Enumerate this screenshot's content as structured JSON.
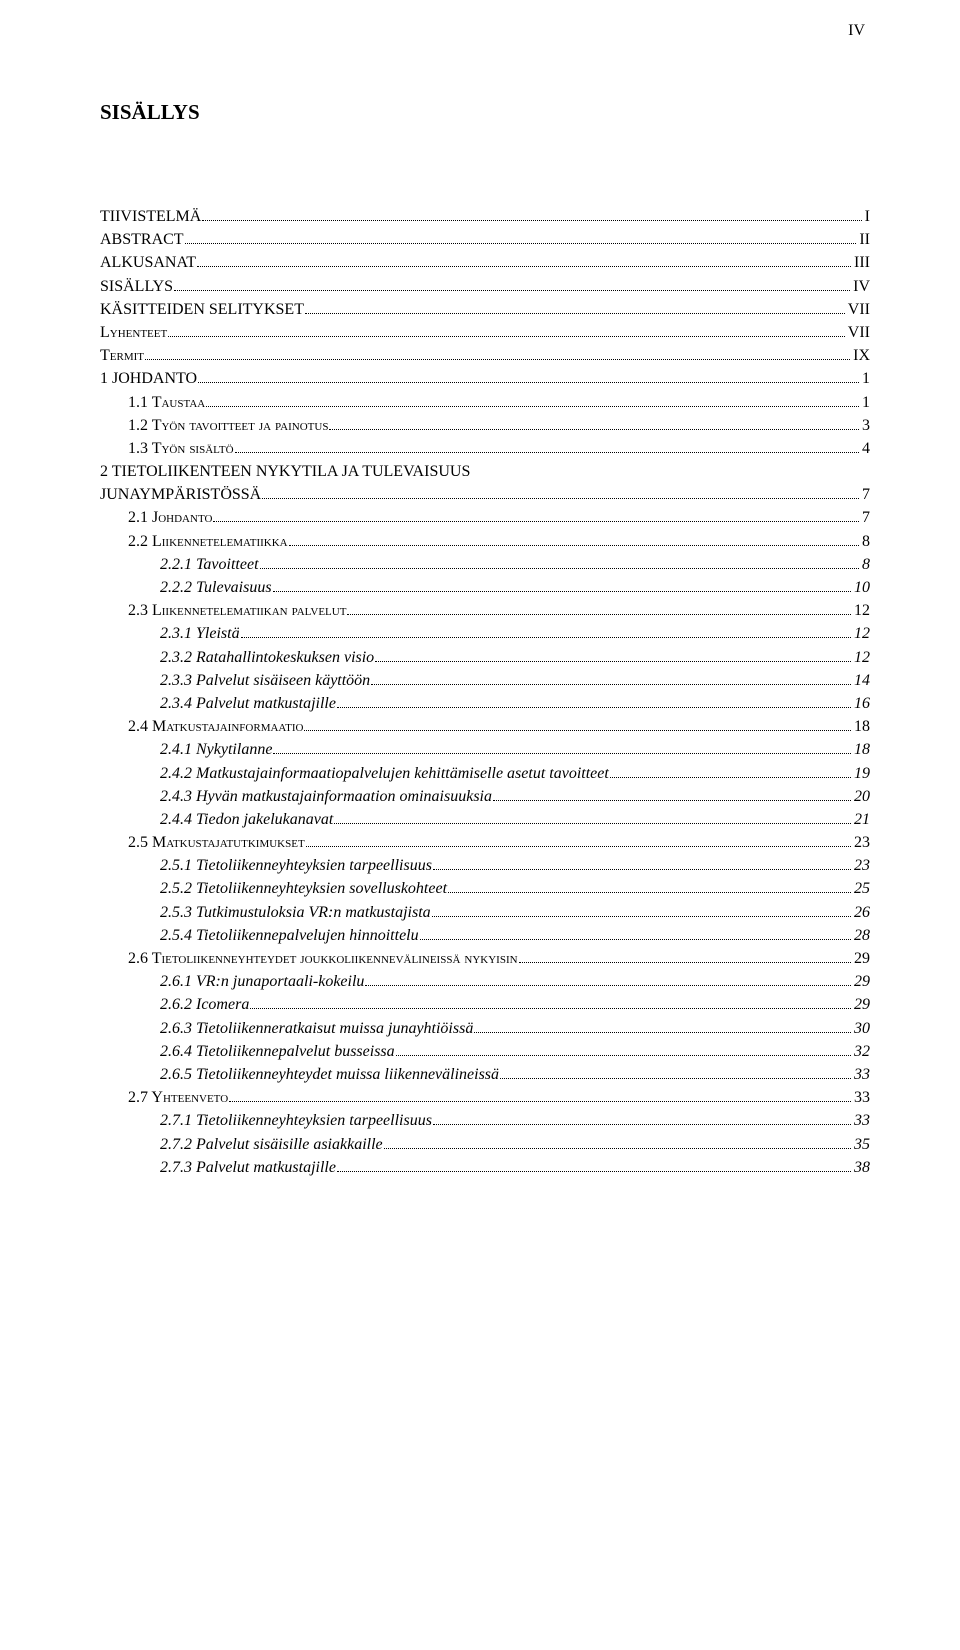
{
  "page_roman": "IV",
  "title": "SISÄLLYS",
  "toc": [
    {
      "lvl": 0,
      "label": "TIIVISTELMÄ",
      "page": "I"
    },
    {
      "lvl": 0,
      "label": "ABSTRACT",
      "page": "II"
    },
    {
      "lvl": 0,
      "label": "ALKUSANAT",
      "page": "III"
    },
    {
      "lvl": 0,
      "label": "SISÄLLYS",
      "page": "IV"
    },
    {
      "lvl": 0,
      "label": "KÄSITTEIDEN SELITYKSET",
      "page": "VII"
    },
    {
      "lvl": 0,
      "label_sc": "Lyhenteet",
      "page": "VII"
    },
    {
      "lvl": 0,
      "label_sc": "Termit",
      "page": "IX"
    },
    {
      "lvl": 0,
      "label": "1    JOHDANTO",
      "page": "1"
    },
    {
      "lvl": 1,
      "label_sc": "1.1    Taustaa",
      "page": "1"
    },
    {
      "lvl": 1,
      "label_sc": "1.2    Työn tavoitteet ja painotus",
      "page": "3"
    },
    {
      "lvl": 1,
      "label_sc": "1.3    Työn sisältö",
      "page": "4"
    },
    {
      "lvl": 0,
      "label": "2    TIETOLIIKENTEEN NYKYTILA JA TULEVAISUUS",
      "label2": "JUNAYMPÄRISTÖSSÄ",
      "page": "7"
    },
    {
      "lvl": 1,
      "label_sc": "2.1    Johdanto",
      "page": "7"
    },
    {
      "lvl": 1,
      "label_sc": "2.2    Liikennetelematiikka",
      "page": "8"
    },
    {
      "lvl": 2,
      "label": "2.2.1    Tavoitteet",
      "page": "8"
    },
    {
      "lvl": 2,
      "label": "2.2.2    Tulevaisuus",
      "page": "10"
    },
    {
      "lvl": 1,
      "label_sc": "2.3    Liikennetelematiikan palvelut",
      "page": "12"
    },
    {
      "lvl": 2,
      "label": "2.3.1    Yleistä",
      "page": "12"
    },
    {
      "lvl": 2,
      "label": "2.3.2    Ratahallintokeskuksen visio",
      "page": "12"
    },
    {
      "lvl": 2,
      "label": "2.3.3    Palvelut sisäiseen käyttöön",
      "page": "14"
    },
    {
      "lvl": 2,
      "label": "2.3.4    Palvelut matkustajille",
      "page": "16"
    },
    {
      "lvl": 1,
      "label_sc": "2.4    Matkustajainformaatio",
      "page": "18"
    },
    {
      "lvl": 2,
      "label": "2.4.1    Nykytilanne",
      "page": "18"
    },
    {
      "lvl": 2,
      "label": "2.4.2    Matkustajainformaatiopalvelujen kehittämiselle asetut tavoitteet",
      "page": "19"
    },
    {
      "lvl": 2,
      "label": "2.4.3    Hyvän matkustajainformaation ominaisuuksia",
      "page": "20"
    },
    {
      "lvl": 2,
      "label": "2.4.4    Tiedon jakelukanavat",
      "page": "21"
    },
    {
      "lvl": 1,
      "label_sc": "2.5    Matkustajatutkimukset",
      "page": "23"
    },
    {
      "lvl": 2,
      "label": "2.5.1    Tietoliikenneyhteyksien tarpeellisuus",
      "page": "23"
    },
    {
      "lvl": 2,
      "label": "2.5.2    Tietoliikenneyhteyksien sovelluskohteet",
      "page": "25"
    },
    {
      "lvl": 2,
      "label": "2.5.3    Tutkimustuloksia VR:n matkustajista",
      "page": "26"
    },
    {
      "lvl": 2,
      "label": "2.5.4    Tietoliikennepalvelujen hinnoittelu",
      "page": "28"
    },
    {
      "lvl": 1,
      "label_sc": "2.6    Tietoliikenneyhteydet joukkoliikennevälineissä nykyisin",
      "page": "29"
    },
    {
      "lvl": 2,
      "label": "2.6.1    VR:n junaportaali-kokeilu",
      "page": "29"
    },
    {
      "lvl": 2,
      "label": "2.6.2    Icomera",
      "page": "29"
    },
    {
      "lvl": 2,
      "label": "2.6.3    Tietoliikenneratkaisut muissa junayhtiöissä",
      "page": "30"
    },
    {
      "lvl": 2,
      "label": "2.6.4    Tietoliikennepalvelut busseissa",
      "page": "32"
    },
    {
      "lvl": 2,
      "label": "2.6.5    Tietoliikenneyhteydet muissa liikennevälineissä",
      "page": "33"
    },
    {
      "lvl": 1,
      "label_sc": "2.7    Yhteenveto",
      "page": "33"
    },
    {
      "lvl": 2,
      "label": "2.7.1    Tietoliikenneyhteyksien tarpeellisuus",
      "page": "33"
    },
    {
      "lvl": 2,
      "label": "2.7.2    Palvelut sisäisille asiakkaille",
      "page": "35"
    },
    {
      "lvl": 2,
      "label": "2.7.3    Palvelut matkustajille",
      "page": "38"
    }
  ]
}
